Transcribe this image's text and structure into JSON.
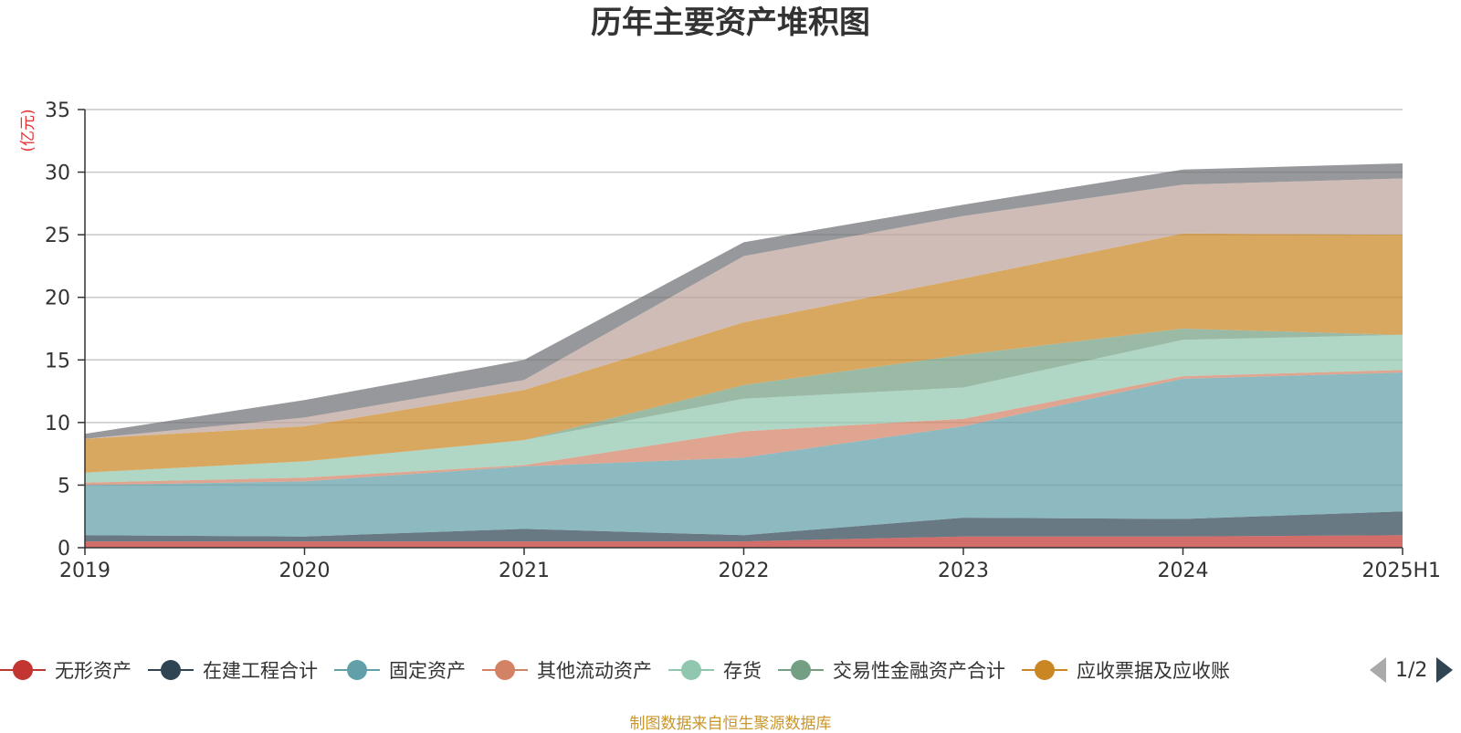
{
  "title": "历年主要资产堆积图",
  "unit_label": "(亿元)",
  "source_note": "制图数据来自恒生聚源数据库",
  "legend_pager": "1/2",
  "chart_data": {
    "type": "area",
    "stacked": true,
    "title": "历年主要资产堆积图",
    "ylabel": "(亿元)",
    "xlabel": "",
    "ylim": [
      0,
      35
    ],
    "yticks": [
      0,
      5,
      10,
      15,
      20,
      25,
      30,
      35
    ],
    "x": [
      "2019",
      "2020",
      "2021",
      "2022",
      "2023",
      "2024",
      "2025H1"
    ],
    "grid": true,
    "legend_position": "bottom",
    "series": [
      {
        "name": "无形资产",
        "color": "#c23531",
        "legend_visible": true,
        "values": [
          0.5,
          0.5,
          0.5,
          0.5,
          0.9,
          0.9,
          1.0
        ]
      },
      {
        "name": "在建工程合计",
        "color": "#2f4554",
        "legend_visible": true,
        "values": [
          0.5,
          0.4,
          1.0,
          0.5,
          1.5,
          1.4,
          1.9
        ]
      },
      {
        "name": "固定资产",
        "color": "#61a0a8",
        "legend_visible": true,
        "values": [
          4.0,
          4.4,
          5.0,
          6.2,
          7.3,
          11.2,
          11.1
        ]
      },
      {
        "name": "其他流动资产",
        "color": "#d48265",
        "legend_visible": true,
        "values": [
          0.2,
          0.3,
          0.1,
          2.1,
          0.6,
          0.2,
          0.2
        ]
      },
      {
        "name": "存货",
        "color": "#91c7ae",
        "legend_visible": true,
        "values": [
          0.8,
          1.3,
          2.0,
          2.6,
          2.5,
          2.9,
          2.8
        ]
      },
      {
        "name": "交易性金融资产合计",
        "color": "#749f83",
        "legend_visible": true,
        "values": [
          0.0,
          0.0,
          0.0,
          1.1,
          2.6,
          0.9,
          0.0
        ]
      },
      {
        "name": "应收票据及应收账",
        "color": "#ca8622",
        "legend_visible": true,
        "values": [
          2.7,
          2.8,
          4.0,
          5.0,
          6.1,
          7.6,
          8.0
        ]
      },
      {
        "name": "",
        "color": "#bda29a",
        "legend_visible": false,
        "values": [
          0.0,
          0.7,
          0.8,
          5.3,
          5.0,
          3.9,
          4.5
        ]
      },
      {
        "name": "",
        "color": "#6e7074",
        "legend_visible": false,
        "values": [
          0.4,
          1.4,
          1.6,
          1.1,
          0.9,
          1.2,
          1.2
        ]
      }
    ]
  }
}
